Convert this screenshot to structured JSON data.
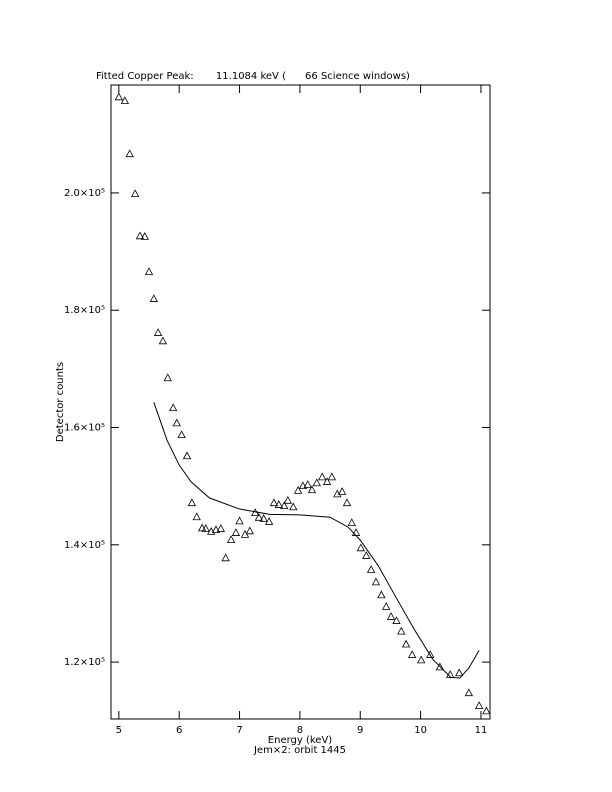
{
  "chart_data": {
    "type": "scatter",
    "title": "Fitted Copper Peak:       11.1084 keV (      66 Science windows)",
    "x_label": "Energy (keV)",
    "y_label": "Detector counts",
    "annotation": "Jem×2: orbit 1445",
    "xlim": [
      4.87,
      11.15
    ],
    "ylim": [
      110300,
      218400
    ],
    "xticks": [
      5,
      6,
      7,
      8,
      9,
      10,
      11
    ],
    "yticks": [
      {
        "value": 120000,
        "label": "1.2×10⁵"
      },
      {
        "value": 140000,
        "label": "1.4×10⁵"
      },
      {
        "value": 160000,
        "label": "1.6×10⁵"
      },
      {
        "value": 180000,
        "label": "1.8×10⁵"
      },
      {
        "value": 200000,
        "label": "2.0×10⁵"
      }
    ],
    "grid": false,
    "series": [
      {
        "color": "#000000",
        "marker": "triangle",
        "x": [
          5.0,
          5.1,
          5.18,
          5.27,
          5.35,
          5.43,
          5.5,
          5.58,
          5.65,
          5.73,
          5.81,
          5.9,
          5.96,
          6.04,
          6.13,
          6.21,
          6.29,
          6.38,
          6.44,
          6.53,
          6.61,
          6.69,
          6.77,
          6.86,
          6.94,
          7.0,
          7.09,
          7.17,
          7.26,
          7.32,
          7.4,
          7.49,
          7.57,
          7.65,
          7.74,
          7.8,
          7.89,
          7.97,
          8.05,
          8.13,
          8.2,
          8.28,
          8.37,
          8.45,
          8.53,
          8.62,
          8.7,
          8.78,
          8.86,
          8.93,
          9.01,
          9.1,
          9.18,
          9.26,
          9.35,
          9.43,
          9.51,
          9.6,
          9.68,
          9.76,
          9.86,
          10.01,
          10.16,
          10.32,
          10.49,
          10.64,
          10.8,
          10.97,
          11.09
        ],
        "values": [
          216300,
          215650,
          206600,
          199800,
          192600,
          192500,
          186500,
          181900,
          176100,
          174700,
          168400,
          163300,
          160700,
          158700,
          155100,
          147100,
          144700,
          142800,
          142700,
          142200,
          142500,
          142700,
          137700,
          140800,
          142000,
          144000,
          141700,
          142300,
          145400,
          144600,
          144400,
          143900,
          147100,
          146800,
          146600,
          147500,
          146400,
          149200,
          150000,
          150200,
          149300,
          150500,
          151500,
          150700,
          151500,
          148600,
          149000,
          147100,
          143700,
          142000,
          139400,
          138100,
          135700,
          133600,
          131400,
          129400,
          127700,
          127000,
          125200,
          123000,
          121200,
          120300,
          121200,
          119100,
          117800,
          118100,
          114700,
          112500,
          111600
        ]
      },
      {
        "color": "#000000",
        "marker": "none",
        "x": [
          5.58,
          5.8,
          6.0,
          6.2,
          6.5,
          7.0,
          7.5,
          8.0,
          8.5,
          8.8,
          9.0,
          9.3,
          9.6,
          9.9,
          10.2,
          10.5,
          10.65,
          10.8,
          10.97
        ],
        "values": [
          164300,
          157800,
          153600,
          150700,
          148000,
          146100,
          145200,
          145100,
          144700,
          143000,
          140800,
          136400,
          130900,
          125500,
          120500,
          117400,
          117300,
          119000,
          122000
        ]
      }
    ]
  }
}
